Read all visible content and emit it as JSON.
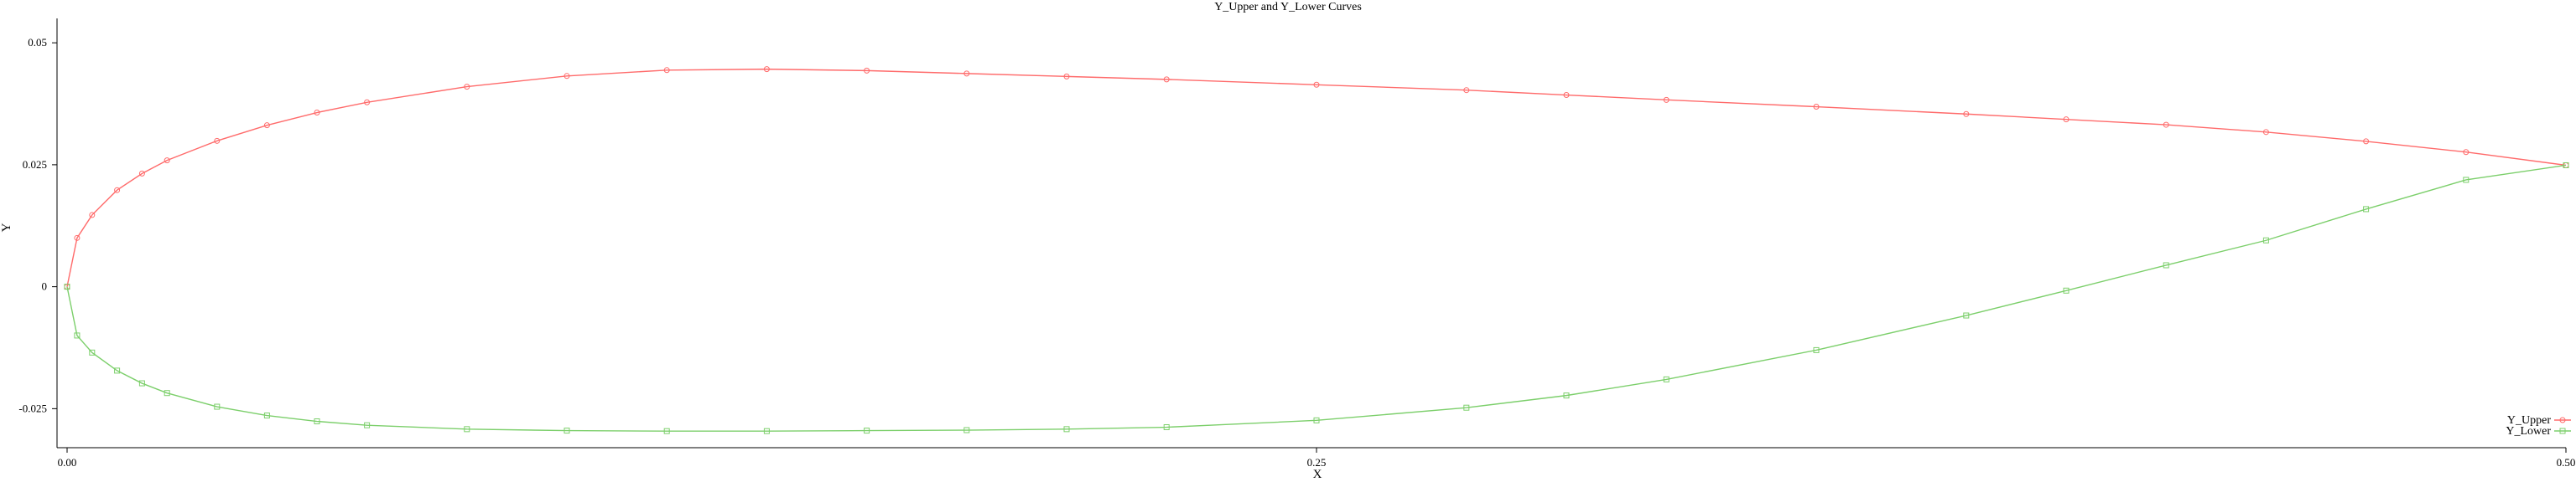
{
  "chart_data": {
    "type": "line",
    "title": "Y_Upper and Y_Lower Curves",
    "xlabel": "X",
    "ylabel": "Y",
    "xlim": [
      0,
      0.5
    ],
    "ylim": [
      -0.033,
      0.055
    ],
    "x_ticks": [
      {
        "value": 0,
        "label": "0.00"
      },
      {
        "value": 0.25,
        "label": "0.25"
      },
      {
        "value": 0.5,
        "label": "0.50"
      }
    ],
    "y_ticks": [
      {
        "value": -0.025,
        "label": "-0.025"
      },
      {
        "value": 0,
        "label": "0"
      },
      {
        "value": 0.025,
        "label": "0.025"
      },
      {
        "value": 0.05,
        "label": "0.05"
      }
    ],
    "grid": false,
    "legend_position": "bottom-right",
    "series": [
      {
        "name": "Y_Upper",
        "color": "#ff6b6b",
        "marker": "circle",
        "x": [
          0.0,
          0.002,
          0.005,
          0.01,
          0.015,
          0.02,
          0.03,
          0.04,
          0.05,
          0.06,
          0.08,
          0.1,
          0.12,
          0.14,
          0.16,
          0.18,
          0.2,
          0.22,
          0.25,
          0.28,
          0.3,
          0.32,
          0.35,
          0.38,
          0.4,
          0.42,
          0.44,
          0.46,
          0.48,
          0.5
        ],
        "y": [
          0.0,
          0.01,
          0.0147,
          0.0198,
          0.0232,
          0.0259,
          0.0299,
          0.0331,
          0.0357,
          0.0378,
          0.041,
          0.0432,
          0.0444,
          0.0446,
          0.0443,
          0.0437,
          0.0431,
          0.0425,
          0.0414,
          0.0403,
          0.0393,
          0.0383,
          0.0369,
          0.0354,
          0.0343,
          0.0332,
          0.0317,
          0.0298,
          0.0276,
          0.0249
        ]
      },
      {
        "name": "Y_Lower",
        "color": "#7ccf6b",
        "marker": "square",
        "x": [
          0.0,
          0.002,
          0.005,
          0.01,
          0.015,
          0.02,
          0.03,
          0.04,
          0.05,
          0.06,
          0.08,
          0.1,
          0.12,
          0.14,
          0.16,
          0.18,
          0.2,
          0.22,
          0.25,
          0.28,
          0.3,
          0.32,
          0.35,
          0.38,
          0.4,
          0.42,
          0.44,
          0.46,
          0.48,
          0.5
        ],
        "y": [
          0.0,
          -0.01,
          -0.0135,
          -0.0172,
          -0.0198,
          -0.0218,
          -0.0246,
          -0.0264,
          -0.0276,
          -0.0284,
          -0.0292,
          -0.0295,
          -0.0296,
          -0.0296,
          -0.0295,
          -0.0294,
          -0.0292,
          -0.0288,
          -0.0274,
          -0.0248,
          -0.0223,
          -0.019,
          -0.013,
          -0.0059,
          -0.0008,
          0.0044,
          0.0095,
          0.0159,
          0.0219,
          0.0249
        ]
      }
    ]
  }
}
